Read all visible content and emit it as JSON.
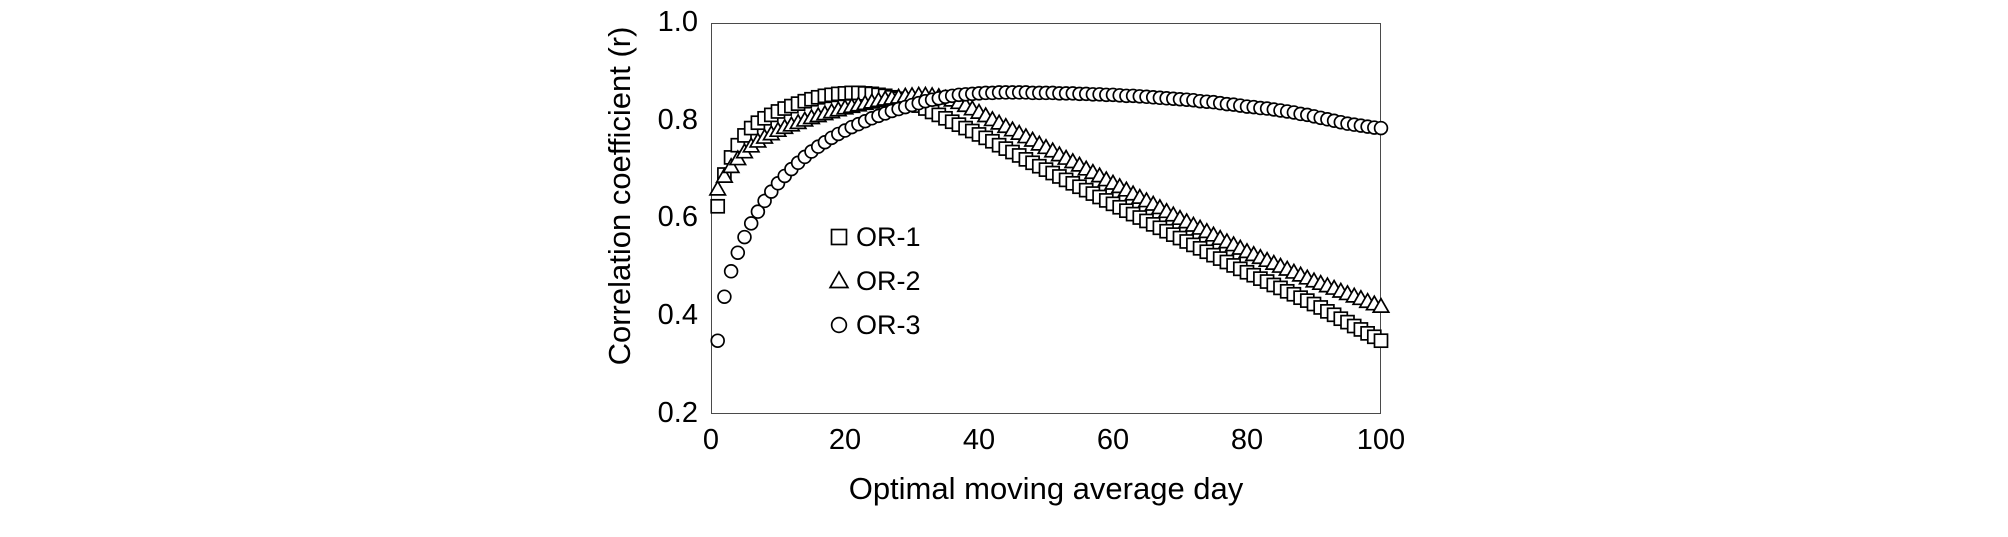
{
  "page": {
    "background": "#ffffff",
    "text_color": "#000000",
    "frame_color": "#4a4a4a"
  },
  "chart_data": {
    "type": "scatter",
    "title": "",
    "xlabel": "Optimal moving average day",
    "ylabel": "Correlation coefficient (r)",
    "xlim": [
      0,
      100
    ],
    "ylim": [
      0.2,
      1.0
    ],
    "grid": false,
    "legend_position": "inside-center-left",
    "marker_color": "#000000",
    "marker_fill": "#ffffff",
    "x_tick_labels": [
      "0",
      "20",
      "40",
      "60",
      "80",
      "100"
    ],
    "x_ticks": [
      0,
      20,
      40,
      60,
      80,
      100
    ],
    "y_tick_labels": [
      "1.0",
      "0.8",
      "0.6",
      "0.4",
      "0.2"
    ],
    "y_ticks": [
      1.0,
      0.8,
      0.6,
      0.4,
      0.2
    ],
    "x": [
      1,
      2,
      3,
      4,
      5,
      6,
      7,
      8,
      9,
      10,
      11,
      12,
      13,
      14,
      15,
      16,
      17,
      18,
      19,
      20,
      21,
      22,
      23,
      24,
      25,
      26,
      27,
      28,
      29,
      30,
      31,
      32,
      33,
      34,
      35,
      36,
      37,
      38,
      39,
      40,
      41,
      42,
      43,
      44,
      45,
      46,
      47,
      48,
      49,
      50,
      51,
      52,
      53,
      54,
      55,
      56,
      57,
      58,
      59,
      60,
      61,
      62,
      63,
      64,
      65,
      66,
      67,
      68,
      69,
      70,
      71,
      72,
      73,
      74,
      75,
      76,
      77,
      78,
      79,
      80,
      81,
      82,
      83,
      84,
      85,
      86,
      87,
      88,
      89,
      90,
      91,
      92,
      93,
      94,
      95,
      96,
      97,
      98,
      99,
      100
    ],
    "series": [
      {
        "name": "OR-1",
        "marker": "square",
        "values": [
          0.625,
          0.69,
          0.725,
          0.75,
          0.77,
          0.785,
          0.796,
          0.805,
          0.812,
          0.819,
          0.825,
          0.83,
          0.835,
          0.84,
          0.844,
          0.848,
          0.851,
          0.853,
          0.855,
          0.856,
          0.857,
          0.857,
          0.856,
          0.855,
          0.853,
          0.851,
          0.848,
          0.845,
          0.842,
          0.838,
          0.831,
          0.825,
          0.818,
          0.812,
          0.805,
          0.798,
          0.792,
          0.785,
          0.779,
          0.772,
          0.765,
          0.758,
          0.75,
          0.743,
          0.736,
          0.729,
          0.721,
          0.714,
          0.707,
          0.7,
          0.693,
          0.686,
          0.679,
          0.672,
          0.665,
          0.658,
          0.651,
          0.644,
          0.637,
          0.63,
          0.623,
          0.616,
          0.609,
          0.602,
          0.595,
          0.588,
          0.581,
          0.574,
          0.567,
          0.56,
          0.553,
          0.546,
          0.539,
          0.532,
          0.525,
          0.518,
          0.511,
          0.504,
          0.497,
          0.49,
          0.484,
          0.477,
          0.471,
          0.464,
          0.458,
          0.451,
          0.445,
          0.438,
          0.432,
          0.425,
          0.418,
          0.41,
          0.403,
          0.395,
          0.388,
          0.38,
          0.373,
          0.365,
          0.358,
          0.35
        ]
      },
      {
        "name": "OR-2",
        "marker": "triangle",
        "values": [
          0.66,
          0.686,
          0.706,
          0.722,
          0.736,
          0.748,
          0.758,
          0.766,
          0.773,
          0.78,
          0.786,
          0.791,
          0.796,
          0.801,
          0.806,
          0.81,
          0.814,
          0.818,
          0.822,
          0.826,
          0.829,
          0.832,
          0.835,
          0.838,
          0.841,
          0.844,
          0.846,
          0.848,
          0.85,
          0.851,
          0.852,
          0.852,
          0.851,
          0.849,
          0.846,
          0.842,
          0.837,
          0.831,
          0.824,
          0.817,
          0.81,
          0.802,
          0.795,
          0.788,
          0.781,
          0.774,
          0.767,
          0.76,
          0.752,
          0.745,
          0.738,
          0.73,
          0.723,
          0.716,
          0.709,
          0.701,
          0.694,
          0.687,
          0.679,
          0.672,
          0.665,
          0.658,
          0.65,
          0.643,
          0.636,
          0.629,
          0.622,
          0.614,
          0.607,
          0.6,
          0.593,
          0.586,
          0.58,
          0.573,
          0.566,
          0.559,
          0.552,
          0.546,
          0.539,
          0.532,
          0.526,
          0.52,
          0.514,
          0.508,
          0.502,
          0.496,
          0.49,
          0.484,
          0.478,
          0.472,
          0.467,
          0.462,
          0.457,
          0.451,
          0.446,
          0.441,
          0.436,
          0.43,
          0.425,
          0.42
        ]
      },
      {
        "name": "OR-3",
        "marker": "circle",
        "values": [
          0.35,
          0.44,
          0.492,
          0.53,
          0.562,
          0.59,
          0.614,
          0.636,
          0.655,
          0.672,
          0.687,
          0.701,
          0.714,
          0.726,
          0.737,
          0.747,
          0.756,
          0.765,
          0.773,
          0.78,
          0.787,
          0.793,
          0.799,
          0.805,
          0.81,
          0.815,
          0.82,
          0.824,
          0.828,
          0.832,
          0.836,
          0.84,
          0.843,
          0.846,
          0.849,
          0.851,
          0.853,
          0.854,
          0.855,
          0.856,
          0.857,
          0.857,
          0.858,
          0.858,
          0.858,
          0.858,
          0.858,
          0.857,
          0.857,
          0.857,
          0.857,
          0.856,
          0.856,
          0.856,
          0.855,
          0.855,
          0.854,
          0.854,
          0.853,
          0.853,
          0.852,
          0.851,
          0.851,
          0.85,
          0.849,
          0.848,
          0.847,
          0.846,
          0.845,
          0.844,
          0.843,
          0.842,
          0.84,
          0.839,
          0.838,
          0.836,
          0.834,
          0.833,
          0.831,
          0.829,
          0.828,
          0.826,
          0.825,
          0.823,
          0.821,
          0.819,
          0.817,
          0.814,
          0.812,
          0.809,
          0.806,
          0.803,
          0.8,
          0.797,
          0.794,
          0.792,
          0.79,
          0.788,
          0.786,
          0.785
        ]
      }
    ]
  }
}
